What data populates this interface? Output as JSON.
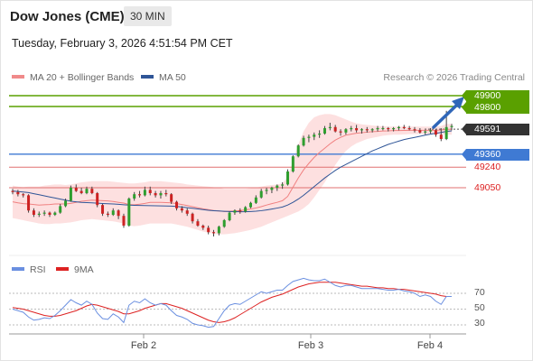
{
  "header": {
    "title": "Dow Jones (CME)",
    "timeframe": "30 MIN"
  },
  "datetime": "Tuesday, February 3, 2026 4:51:54 PM CET",
  "legend": {
    "bb_label": "MA 20 + Bollinger Bands",
    "ma50_label": "MA 50",
    "credit": "Research © 2026 Trading Central"
  },
  "rsi_legend": {
    "rsi_label": "RSI",
    "ma_label": "9MA"
  },
  "colors": {
    "resistance": "#5aa000",
    "support": "#3f7ad3",
    "level_red": "#e07070",
    "up": "#2e9e2e",
    "down": "#cc2222",
    "bb_fill": "#fde0e0",
    "ma20": "#f08080",
    "ma50": "#2f5597",
    "rsi": "#6a8fe0",
    "rsi_ma": "#dd2222"
  },
  "levels": {
    "r2": {
      "value": 49900,
      "label": "49900"
    },
    "r1": {
      "value": 49800,
      "label": "49800"
    },
    "last": {
      "value": 49591,
      "label": "49591"
    },
    "s1": {
      "value": 49360,
      "label": "49360"
    },
    "s2": {
      "value": 49240,
      "label": "49240"
    },
    "s3": {
      "value": 49050,
      "label": "49050"
    }
  },
  "x_labels": [
    "Feb 2",
    "Feb 3",
    "Feb 4"
  ],
  "rsi_levels": [
    "70",
    "50",
    "30"
  ],
  "chart_data": {
    "type": "candlestick",
    "price_range": [
      48550,
      50050
    ],
    "candles": [
      [
        49020,
        49040,
        48990,
        49010
      ],
      [
        49010,
        49030,
        48970,
        48990
      ],
      [
        48990,
        49000,
        48960,
        48980
      ],
      [
        48980,
        48990,
        48820,
        48840
      ],
      [
        48840,
        48860,
        48780,
        48800
      ],
      [
        48800,
        48830,
        48780,
        48810
      ],
      [
        48810,
        48840,
        48790,
        48820
      ],
      [
        48820,
        48830,
        48780,
        48800
      ],
      [
        48800,
        48830,
        48790,
        48820
      ],
      [
        48820,
        48900,
        48810,
        48880
      ],
      [
        48880,
        48950,
        48870,
        48930
      ],
      [
        48930,
        49070,
        48920,
        49050
      ],
      [
        49050,
        49080,
        49010,
        49020
      ],
      [
        49020,
        49050,
        48990,
        49000
      ],
      [
        49000,
        49060,
        48990,
        49040
      ],
      [
        49040,
        49060,
        48990,
        49000
      ],
      [
        49000,
        49010,
        48870,
        48890
      ],
      [
        48890,
        48900,
        48790,
        48810
      ],
      [
        48810,
        48830,
        48780,
        48800
      ],
      [
        48800,
        48860,
        48790,
        48840
      ],
      [
        48840,
        48850,
        48760,
        48790
      ],
      [
        48790,
        48810,
        48680,
        48700
      ],
      [
        48700,
        48960,
        48690,
        48950
      ],
      [
        48950,
        49010,
        48930,
        48990
      ],
      [
        48990,
        49020,
        48960,
        48980
      ],
      [
        48980,
        49060,
        48970,
        49030
      ],
      [
        49030,
        49060,
        48980,
        49000
      ],
      [
        49000,
        49020,
        48960,
        48980
      ],
      [
        48980,
        49020,
        48950,
        49000
      ],
      [
        49000,
        49030,
        48970,
        48990
      ],
      [
        48990,
        49000,
        48900,
        48920
      ],
      [
        48920,
        48930,
        48840,
        48860
      ],
      [
        48860,
        48880,
        48820,
        48840
      ],
      [
        48840,
        48860,
        48790,
        48810
      ],
      [
        48810,
        48820,
        48720,
        48740
      ],
      [
        48740,
        48760,
        48690,
        48700
      ],
      [
        48700,
        48710,
        48660,
        48680
      ],
      [
        48680,
        48700,
        48620,
        48640
      ],
      [
        48640,
        48660,
        48600,
        48630
      ],
      [
        48630,
        48700,
        48610,
        48690
      ],
      [
        48690,
        48760,
        48680,
        48750
      ],
      [
        48750,
        48830,
        48740,
        48820
      ],
      [
        48820,
        48850,
        48800,
        48840
      ],
      [
        48840,
        48860,
        48810,
        48830
      ],
      [
        48830,
        48880,
        48820,
        48870
      ],
      [
        48870,
        48920,
        48860,
        48910
      ],
      [
        48910,
        48980,
        48900,
        48960
      ],
      [
        48960,
        49040,
        48950,
        49020
      ],
      [
        49020,
        49050,
        48990,
        49030
      ],
      [
        49030,
        49060,
        49000,
        49050
      ],
      [
        49050,
        49080,
        49020,
        49070
      ],
      [
        49070,
        49100,
        49040,
        49080
      ],
      [
        49080,
        49220,
        49070,
        49200
      ],
      [
        49200,
        49350,
        49190,
        49340
      ],
      [
        49340,
        49450,
        49330,
        49440
      ],
      [
        49440,
        49530,
        49430,
        49510
      ],
      [
        49510,
        49540,
        49470,
        49520
      ],
      [
        49520,
        49560,
        49490,
        49540
      ],
      [
        49540,
        49580,
        49510,
        49550
      ],
      [
        49550,
        49620,
        49540,
        49600
      ],
      [
        49600,
        49650,
        49580,
        49610
      ],
      [
        49610,
        49630,
        49560,
        49570
      ],
      [
        49570,
        49590,
        49530,
        49560
      ],
      [
        49560,
        49600,
        49540,
        49590
      ],
      [
        49590,
        49620,
        49570,
        49600
      ],
      [
        49600,
        49630,
        49560,
        49580
      ],
      [
        49580,
        49600,
        49550,
        49590
      ],
      [
        49590,
        49610,
        49560,
        49580
      ],
      [
        49580,
        49600,
        49560,
        49590
      ],
      [
        49590,
        49620,
        49570,
        49600
      ],
      [
        49600,
        49620,
        49580,
        49600
      ],
      [
        49600,
        49610,
        49570,
        49590
      ],
      [
        49590,
        49610,
        49570,
        49600
      ],
      [
        49600,
        49620,
        49580,
        49610
      ],
      [
        49610,
        49630,
        49590,
        49600
      ],
      [
        49600,
        49620,
        49580,
        49590
      ],
      [
        49590,
        49610,
        49560,
        49580
      ],
      [
        49580,
        49600,
        49550,
        49560
      ],
      [
        49560,
        49580,
        49540,
        49570
      ],
      [
        49570,
        49600,
        49550,
        49580
      ],
      [
        49580,
        49590,
        49520,
        49540
      ],
      [
        49540,
        49600,
        49480,
        49500
      ],
      [
        49500,
        49760,
        49490,
        49610
      ],
      [
        49610,
        49640,
        49580,
        49620
      ]
    ],
    "bb_upper": [
      49070,
      49060,
      49055,
      49060,
      49060,
      49060,
      49070,
      49075,
      49080,
      49080,
      49075,
      49080,
      49090,
      49100,
      49105,
      49110,
      49110,
      49110,
      49110,
      49105,
      49100,
      49095,
      49090,
      49090,
      49095,
      49100,
      49110,
      49110,
      49110,
      49105,
      49100,
      49095,
      49090,
      49080,
      49075,
      49070,
      49065,
      49060,
      49055,
      49050,
      49040,
      49040,
      49040,
      49040,
      49040,
      49045,
      49050,
      49060,
      49070,
      49075,
      49080,
      49090,
      49150,
      49300,
      49450,
      49570,
      49650,
      49700,
      49720,
      49730,
      49730,
      49720,
      49700,
      49680,
      49660,
      49645,
      49635,
      49630,
      49625,
      49620,
      49618,
      49615,
      49615,
      49615,
      49615,
      49615,
      49615,
      49615,
      49615,
      49615,
      49615,
      49620,
      49640,
      49640
    ],
    "bb_lower": [
      48770,
      48760,
      48750,
      48740,
      48730,
      48720,
      48715,
      48715,
      48720,
      48720,
      48725,
      48730,
      48740,
      48750,
      48755,
      48760,
      48755,
      48750,
      48745,
      48740,
      48730,
      48720,
      48700,
      48695,
      48700,
      48710,
      48720,
      48720,
      48720,
      48720,
      48720,
      48710,
      48700,
      48690,
      48675,
      48660,
      48645,
      48635,
      48625,
      48620,
      48620,
      48625,
      48630,
      48640,
      48650,
      48660,
      48675,
      48690,
      48710,
      48730,
      48750,
      48770,
      48790,
      48810,
      48830,
      48860,
      48900,
      48960,
      49030,
      49100,
      49180,
      49260,
      49330,
      49390,
      49430,
      49460,
      49480,
      49500,
      49510,
      49520,
      49530,
      49535,
      49540,
      49540,
      49542,
      49545,
      49545,
      49545,
      49545,
      49545,
      49545,
      49545,
      49540,
      49540
    ],
    "ma20": [
      48920,
      48910,
      48903,
      48900,
      48895,
      48890,
      48893,
      48895,
      48900,
      48900,
      48900,
      48905,
      48915,
      48925,
      48930,
      48935,
      48933,
      48930,
      48928,
      48923,
      48915,
      48908,
      48895,
      48893,
      48898,
      48905,
      48915,
      48915,
      48915,
      48913,
      48910,
      48903,
      48895,
      48885,
      48875,
      48865,
      48855,
      48848,
      48840,
      48835,
      48830,
      48833,
      48835,
      48840,
      48845,
      48853,
      48863,
      48875,
      48890,
      48903,
      48915,
      48930,
      48970,
      49055,
      49140,
      49215,
      49275,
      49330,
      49375,
      49415,
      49455,
      49490,
      49515,
      49535,
      49545,
      49553,
      49558,
      49563,
      49568,
      49570,
      49574,
      49575,
      49578,
      49578,
      49579,
      49580,
      49580,
      49580,
      49580,
      49580,
      49580,
      49583,
      49590,
      49590
    ],
    "ma50": [
      49020,
      49015,
      49010,
      49005,
      48995,
      48985,
      48975,
      48965,
      48955,
      48945,
      48935,
      48925,
      48920,
      48915,
      48912,
      48910,
      48907,
      48904,
      48902,
      48900,
      48897,
      48893,
      48890,
      48888,
      48886,
      48885,
      48884,
      48883,
      48882,
      48881,
      48880,
      48877,
      48872,
      48866,
      48860,
      48854,
      48848,
      48842,
      48838,
      48835,
      48832,
      48830,
      48829,
      48828,
      48828,
      48830,
      48833,
      48838,
      48845,
      48853,
      48862,
      48872,
      48890,
      48915,
      48945,
      48980,
      49020,
      49060,
      49100,
      49140,
      49175,
      49210,
      49240,
      49265,
      49290,
      49315,
      49340,
      49365,
      49390,
      49410,
      49430,
      49450,
      49465,
      49480,
      49495,
      49505,
      49515,
      49525,
      49535,
      49545,
      49552,
      49560,
      49570,
      49575
    ],
    "rsi": [
      50,
      48,
      46,
      40,
      36,
      37,
      39,
      38,
      42,
      48,
      55,
      62,
      58,
      55,
      60,
      56,
      45,
      38,
      37,
      44,
      40,
      33,
      55,
      60,
      58,
      63,
      58,
      55,
      57,
      55,
      48,
      42,
      40,
      37,
      32,
      30,
      29,
      27,
      28,
      38,
      48,
      55,
      57,
      56,
      60,
      64,
      68,
      72,
      70,
      72,
      74,
      74,
      80,
      85,
      87,
      89,
      87,
      86,
      86,
      88,
      84,
      80,
      78,
      80,
      80,
      78,
      76,
      76,
      76,
      76,
      75,
      74,
      74,
      75,
      73,
      72,
      70,
      66,
      68,
      66,
      60,
      56,
      66,
      66
    ],
    "rsi_ma": [
      52,
      51,
      50,
      48,
      46,
      44,
      42,
      41,
      41,
      42,
      44,
      46,
      48,
      51,
      54,
      56,
      55,
      53,
      51,
      49,
      47,
      44,
      44,
      46,
      48,
      51,
      53,
      55,
      57,
      57,
      55,
      53,
      51,
      48,
      45,
      42,
      39,
      36,
      34,
      33,
      34,
      36,
      39,
      43,
      47,
      51,
      55,
      59,
      62,
      65,
      67,
      69,
      72,
      75,
      78,
      80,
      82,
      83,
      84,
      84,
      84,
      84,
      83,
      82,
      81,
      80,
      79,
      79,
      78,
      77,
      77,
      76,
      76,
      75,
      75,
      74,
      73,
      72,
      71,
      70,
      69,
      67,
      66,
      66
    ]
  }
}
